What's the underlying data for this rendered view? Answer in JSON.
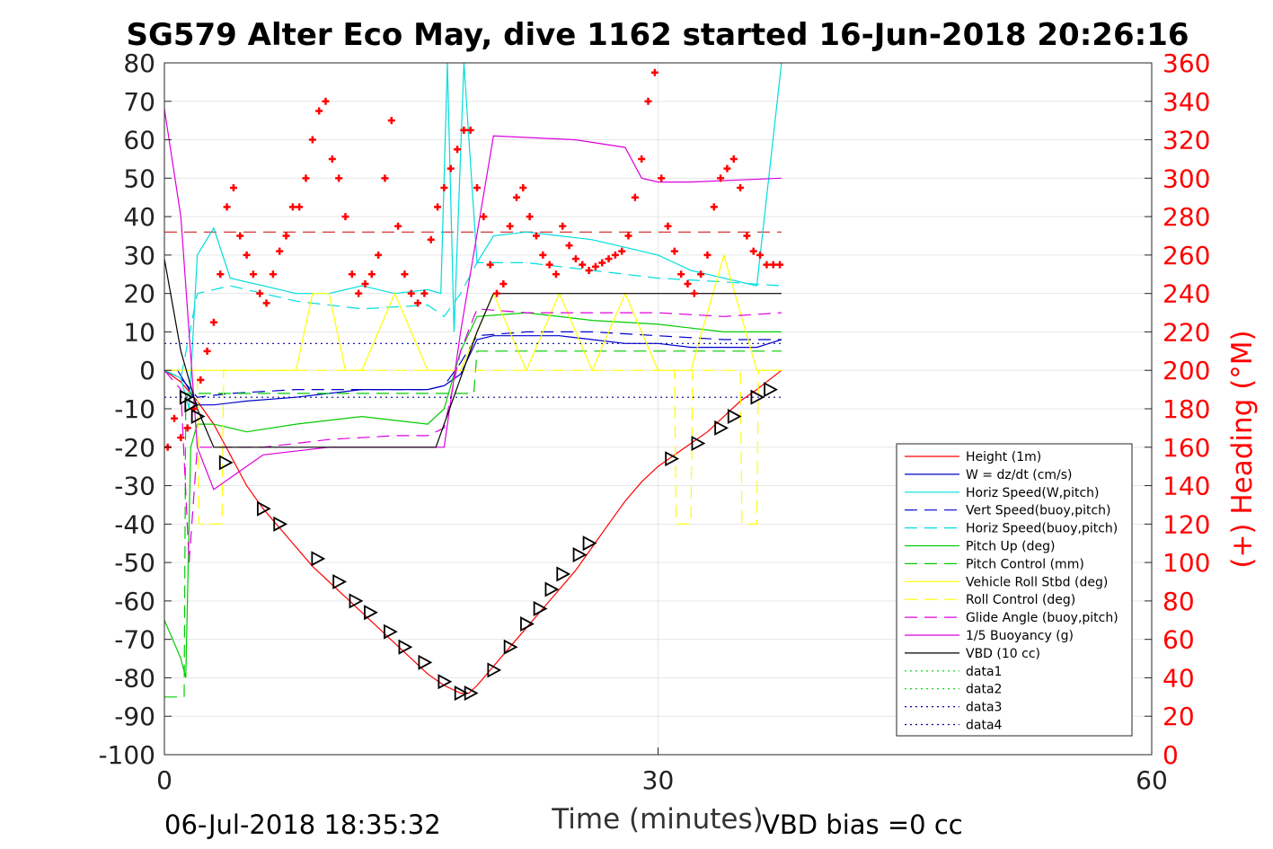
{
  "chart_data": {
    "type": "line",
    "title": "SG579 Alter Eco May, dive 1162 started 16-Jun-2018 20:26:16",
    "xlabel": "Time (minutes)",
    "ylabel_right": "(+) Heading (°M)",
    "xlim": [
      0,
      60
    ],
    "ylim": [
      -100,
      80
    ],
    "ylim_right": [
      0,
      360
    ],
    "x_ticks": [
      "0",
      "30",
      "60"
    ],
    "y_ticks": [
      "80",
      "70",
      "60",
      "50",
      "40",
      "30",
      "20",
      "10",
      "0",
      "-10",
      "-20",
      "-30",
      "-40",
      "-50",
      "-60",
      "-70",
      "-80",
      "-90",
      "-100"
    ],
    "y_ticks_right": [
      "360",
      "340",
      "320",
      "300",
      "280",
      "260",
      "240",
      "220",
      "200",
      "180",
      "160",
      "140",
      "120",
      "100",
      "80",
      "60",
      "40",
      "20",
      "0"
    ],
    "grid": true,
    "legend_position": "bottom-right",
    "footer_left": "06-Jul-2018 18:35:32",
    "footer_right": "VBD bias =0 cc",
    "series": [
      {
        "name": "Height (1m)",
        "color": "#ff0000",
        "style": "solid",
        "x": [
          0,
          1,
          2,
          3,
          4,
          5,
          6,
          7,
          8,
          9,
          10,
          11,
          12,
          13,
          14,
          15,
          16,
          17,
          18,
          18.5,
          19,
          20,
          21,
          22,
          23,
          24,
          25,
          26,
          27,
          28,
          29,
          30,
          31,
          32,
          33,
          34,
          35,
          36,
          37.5
        ],
        "y": [
          0,
          -3,
          -8,
          -14,
          -22,
          -30,
          -36,
          -41,
          -46,
          -51,
          -55,
          -59,
          -63,
          -67,
          -71,
          -75,
          -79,
          -82,
          -84,
          -84,
          -82,
          -77,
          -72,
          -67,
          -62,
          -57,
          -52,
          -46,
          -40,
          -34,
          -29,
          -25,
          -22,
          -19,
          -16,
          -12,
          -8,
          -5,
          0
        ]
      },
      {
        "name": "W = dz/dt (cm/s)",
        "color": "#0000cc",
        "style": "solid",
        "x": [
          0,
          0.8,
          1.5,
          2,
          3,
          5,
          8,
          10,
          12,
          14,
          16,
          17,
          18,
          19,
          20,
          22,
          24,
          26,
          28,
          30,
          32,
          34,
          36,
          37.5
        ],
        "y": [
          0,
          0,
          -5,
          -9,
          -9,
          -8,
          -7,
          -6,
          -5,
          -5,
          -5,
          -4,
          -1,
          8,
          9,
          9,
          9,
          8,
          7,
          7,
          6,
          6,
          6,
          8
        ]
      },
      {
        "name": "Horiz Speed(W,pitch)",
        "color": "#00dddd",
        "style": "solid",
        "x": [
          0,
          1,
          1.5,
          2,
          3,
          4,
          6,
          8,
          10,
          12,
          14,
          16,
          16.8,
          17.2,
          17.6,
          18.2,
          19,
          20,
          22,
          24,
          26,
          28,
          30,
          32,
          34,
          36,
          37.5
        ],
        "y": [
          0,
          -2,
          -10,
          30,
          37,
          24,
          22,
          20,
          20,
          22,
          20,
          21,
          20,
          80,
          10,
          80,
          28,
          35,
          36,
          35,
          34,
          32,
          30,
          26,
          24,
          22,
          80
        ]
      },
      {
        "name": "Vert Speed(buoy,pitch)",
        "color": "#0000cc",
        "style": "dashed",
        "x": [
          0,
          1,
          2,
          4,
          8,
          12,
          16,
          17,
          18,
          19,
          22,
          26,
          30,
          34,
          37.5
        ],
        "y": [
          0,
          -2,
          -7,
          -6,
          -5,
          -5,
          -5,
          -4,
          2,
          9,
          10,
          10,
          9,
          8,
          8
        ]
      },
      {
        "name": "Horiz Speed(buoy,pitch)",
        "color": "#00dddd",
        "style": "dashed",
        "x": [
          0,
          1,
          2,
          4,
          8,
          12,
          16,
          17,
          18,
          19,
          22,
          26,
          30,
          34,
          37.5
        ],
        "y": [
          0,
          -2,
          20,
          22,
          18,
          16,
          17,
          14,
          20,
          28,
          28,
          26,
          24,
          23,
          22
        ]
      },
      {
        "name": "Pitch Up (deg)",
        "color": "#00cc00",
        "style": "solid",
        "x": [
          0,
          0.5,
          1,
          1.3,
          1.6,
          2,
          3,
          5,
          8,
          12,
          16,
          17,
          18,
          19,
          22,
          26,
          30,
          34,
          37.5
        ],
        "y": [
          -65,
          -70,
          -75,
          -80,
          -20,
          -14,
          -14,
          -16,
          -14,
          -12,
          -14,
          -10,
          5,
          14,
          15,
          13,
          12,
          10,
          10
        ]
      },
      {
        "name": "Pitch Control (mm)",
        "color": "#00cc00",
        "style": "dashed",
        "x": [
          0,
          1.2,
          1.3,
          2.5,
          17,
          18.8,
          19,
          37.5
        ],
        "y": [
          -85,
          -85,
          -6,
          -6,
          -6,
          -6,
          5,
          5
        ]
      },
      {
        "name": "Vehicle Roll Stbd (deg)",
        "color": "#ffff00",
        "style": "solid",
        "x": [
          0,
          2,
          4,
          8,
          9,
          10,
          11,
          12,
          14,
          16,
          18,
          20,
          22,
          24,
          26,
          28,
          30,
          32,
          34,
          36,
          37.5
        ],
        "y": [
          0,
          0,
          0,
          0,
          20,
          20,
          0,
          0,
          20,
          0,
          0,
          20,
          0,
          20,
          0,
          20,
          0,
          0,
          30,
          0,
          0
        ]
      },
      {
        "name": "Roll Control (deg)",
        "color": "#ffff00",
        "style": "dashed",
        "x": [
          0,
          2,
          2.1,
          3.5,
          3.6,
          5,
          8,
          12,
          16,
          20,
          24,
          28,
          31,
          31.1,
          32,
          32.1,
          35,
          35.1,
          36,
          36.1,
          37.5
        ],
        "y": [
          0,
          0,
          -40,
          -40,
          0,
          0,
          0,
          0,
          0,
          0,
          0,
          0,
          0,
          -40,
          -40,
          0,
          0,
          -40,
          -40,
          0,
          0
        ]
      },
      {
        "name": "Glide Angle (buoy,pitch)",
        "color": "#dd00dd",
        "style": "dashed",
        "x": [
          0,
          1,
          1.5,
          2,
          3,
          6,
          10,
          14,
          16,
          17,
          18,
          19,
          22,
          26,
          30,
          34,
          37.5
        ],
        "y": [
          0,
          -5,
          -50,
          -20,
          -20,
          -20,
          -18,
          -17,
          -17,
          -15,
          5,
          16,
          15,
          15,
          15,
          14,
          15
        ]
      },
      {
        "name": "1/5 Buoyancy (g)",
        "color": "#dd00dd",
        "style": "solid",
        "x": [
          0,
          1,
          2,
          3,
          6,
          10,
          16,
          17,
          18,
          20,
          25,
          28,
          29,
          30,
          32,
          37.5
        ],
        "y": [
          68,
          40,
          -20,
          -31,
          -22,
          -20,
          -20,
          -20,
          10,
          61,
          60,
          58,
          50,
          49,
          49,
          50
        ]
      },
      {
        "name": "VBD (10 cc)",
        "color": "#000000",
        "style": "solid",
        "x": [
          0,
          1,
          2,
          3,
          4,
          16,
          16.5,
          19,
          20,
          37.5
        ],
        "y": [
          29,
          5,
          -10,
          -20,
          -20,
          -20,
          -20,
          10,
          20,
          20
        ]
      },
      {
        "name": "data1",
        "color": "#00cc00",
        "style": "dotted",
        "x": [],
        "y": []
      },
      {
        "name": "data2",
        "color": "#00cc00",
        "style": "dotted",
        "x": [],
        "y": []
      },
      {
        "name": "data3",
        "color": "#000099",
        "style": "dotted",
        "x": [
          0,
          37.5
        ],
        "y": [
          7,
          7
        ]
      },
      {
        "name": "data4",
        "color": "#000099",
        "style": "dotted",
        "x": [
          0,
          37.5
        ],
        "y": [
          -7,
          -7
        ]
      }
    ],
    "heading_reference": {
      "color": "#cc0000",
      "style": "dashed",
      "value": 272
    },
    "heading_points": {
      "color": "#ff0000",
      "marker": "+",
      "x": [
        0.2,
        0.6,
        1.0,
        1.4,
        1.8,
        2.2,
        2.6,
        3.0,
        3.4,
        3.8,
        4.2,
        4.6,
        5.0,
        5.4,
        5.8,
        6.2,
        6.6,
        7.0,
        7.4,
        7.8,
        8.2,
        8.6,
        9.0,
        9.4,
        9.8,
        10.2,
        10.6,
        11.0,
        11.4,
        11.8,
        12.2,
        12.6,
        13.0,
        13.4,
        13.8,
        14.2,
        14.6,
        15.0,
        15.4,
        15.8,
        16.2,
        16.6,
        17.0,
        17.4,
        17.8,
        18.2,
        18.6,
        19.0,
        19.4,
        19.8,
        20.2,
        20.6,
        21.0,
        21.4,
        21.8,
        22.2,
        22.6,
        23.0,
        23.4,
        23.8,
        24.2,
        24.6,
        25.0,
        25.4,
        25.8,
        26.2,
        26.6,
        27.0,
        27.4,
        27.8,
        28.2,
        28.6,
        29.0,
        29.4,
        29.8,
        30.2,
        30.6,
        31.0,
        31.4,
        31.8,
        32.2,
        32.6,
        33.0,
        33.4,
        33.8,
        34.2,
        34.6,
        35.0,
        35.4,
        35.8,
        36.2,
        36.6,
        37.0,
        37.4
      ],
      "y": [
        160,
        175,
        165,
        170,
        180,
        195,
        210,
        225,
        250,
        285,
        295,
        270,
        260,
        250,
        240,
        235,
        250,
        262,
        270,
        285,
        285,
        300,
        320,
        335,
        340,
        310,
        300,
        280,
        250,
        240,
        245,
        250,
        260,
        300,
        330,
        275,
        250,
        240,
        235,
        240,
        268,
        285,
        295,
        305,
        315,
        325,
        325,
        295,
        280,
        255,
        240,
        245,
        275,
        290,
        295,
        280,
        270,
        260,
        255,
        250,
        275,
        265,
        258,
        255,
        252,
        254,
        256,
        258,
        260,
        262,
        270,
        290,
        310,
        340,
        355,
        300,
        275,
        262,
        250,
        245,
        240,
        250,
        260,
        285,
        300,
        305,
        310,
        295,
        270,
        262,
        260,
        255,
        255,
        255
      ]
    },
    "triangle_markers": {
      "color": "#000000",
      "marker": "triangle",
      "x": [
        1.3,
        1.6,
        2.0,
        3.7,
        6.0,
        7.0,
        9.3,
        10.6,
        11.6,
        12.5,
        13.7,
        14.6,
        15.8,
        17.0,
        18.0,
        18.6,
        20.0,
        21.0,
        22.0,
        22.8,
        23.5,
        24.2,
        25.2,
        25.8,
        30.8,
        32.4,
        33.8,
        34.6,
        36.0,
        36.8
      ],
      "y": [
        -7,
        -9,
        -12,
        -24,
        -36,
        -40,
        -49,
        -55,
        -60,
        -63,
        -68,
        -72,
        -76,
        -81,
        -84,
        -84,
        -78,
        -72,
        -66,
        -62,
        -57,
        -53,
        -48,
        -45,
        -23,
        -19,
        -15,
        -12,
        -7,
        -5
      ]
    }
  }
}
